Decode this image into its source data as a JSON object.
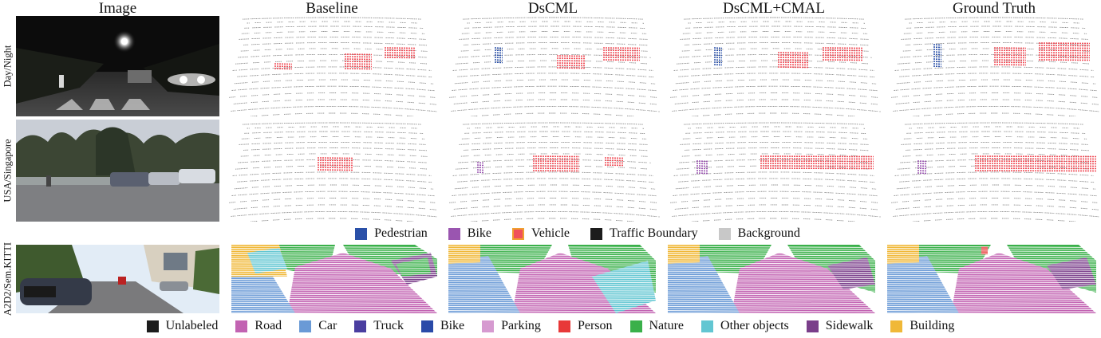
{
  "columns": [
    "Image",
    "Baseline",
    "DsCML",
    "DsCML+CMAL",
    "Ground Truth"
  ],
  "rows": [
    "Day/Night",
    "USA/Singapore",
    "A2D2/Sem.KITTI"
  ],
  "legend_top": [
    {
      "label": "Pedestrian",
      "color": "#2a50a8"
    },
    {
      "label": "Bike",
      "color": "#9a55b0"
    },
    {
      "label": "Vehicle",
      "color": "#f0505a",
      "border": "#f0a030"
    },
    {
      "label": "Traffic Boundary",
      "color": "#1c1c1c"
    },
    {
      "label": "Background",
      "color": "#c8c8c8"
    }
  ],
  "legend_bottom": [
    {
      "label": "Unlabeled",
      "color": "#1c1c1c"
    },
    {
      "label": "Road",
      "color": "#c263b2"
    },
    {
      "label": "Car",
      "color": "#6a9ad6"
    },
    {
      "label": "Truck",
      "color": "#4a3ea0"
    },
    {
      "label": "Bike",
      "color": "#2a4aa8"
    },
    {
      "label": "Parking",
      "color": "#d69ad0"
    },
    {
      "label": "Person",
      "color": "#e83838"
    },
    {
      "label": "Nature",
      "color": "#3ab04a"
    },
    {
      "label": "Other objects",
      "color": "#62c6d2"
    },
    {
      "label": "Sidewalk",
      "color": "#7a3e8a"
    },
    {
      "label": "Building",
      "color": "#f0b838"
    }
  ]
}
